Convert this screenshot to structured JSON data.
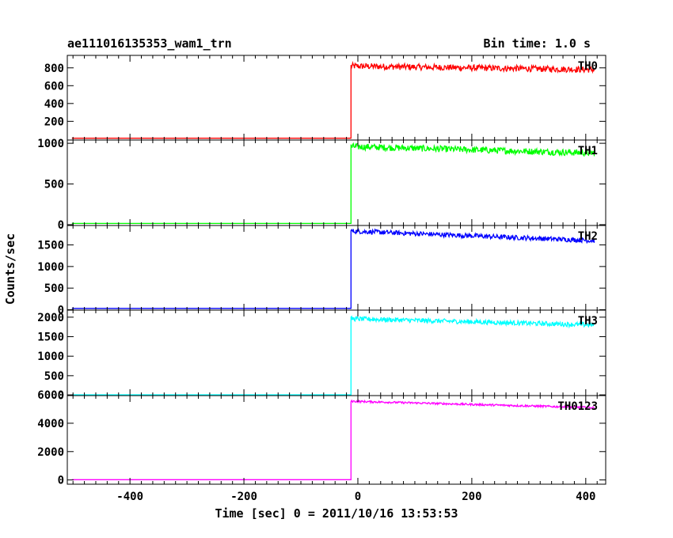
{
  "header": {
    "title": "ae111016135353_wam1_trn",
    "bin_time": "Bin time: 1.0 s"
  },
  "chart_data": {
    "type": "line",
    "xlabel": "Time [sec] 0 = 2011/10/16 13:53:53",
    "ylabel": "Counts/sec",
    "xlim": [
      -510,
      435
    ],
    "xticks": [
      -400,
      -200,
      0,
      200,
      400
    ],
    "trigger_time": -12,
    "panels": [
      {
        "name": "TH0",
        "color": "#ff0000",
        "ylim": [
          -10,
          940
        ],
        "yticks": [
          200,
          400,
          600,
          800
        ],
        "pre_level": 10,
        "post_start": 820,
        "post_end": 780,
        "noise": 35
      },
      {
        "name": "TH1",
        "color": "#00ff00",
        "ylim": [
          -10,
          1040
        ],
        "yticks": [
          0,
          500,
          1000
        ],
        "pre_level": 15,
        "post_start": 960,
        "post_end": 880,
        "noise": 40
      },
      {
        "name": "TH2",
        "color": "#0000ff",
        "ylim": [
          -10,
          1950
        ],
        "yticks": [
          0,
          500,
          1000,
          1500
        ],
        "pre_level": 30,
        "post_start": 1820,
        "post_end": 1600,
        "noise": 55
      },
      {
        "name": "TH3",
        "color": "#00ffff",
        "ylim": [
          -10,
          2180
        ],
        "yticks": [
          0,
          500,
          1000,
          1500,
          2000
        ],
        "pre_level": 10,
        "post_start": 1960,
        "post_end": 1800,
        "noise": 60
      },
      {
        "name": "TH0123",
        "color": "#ff00ff",
        "ylim": [
          -300,
          5950
        ],
        "yticks": [
          0,
          2000,
          4000,
          6000
        ],
        "pre_level": 20,
        "post_start": 5550,
        "post_end": 5100,
        "noise": 70
      }
    ]
  }
}
